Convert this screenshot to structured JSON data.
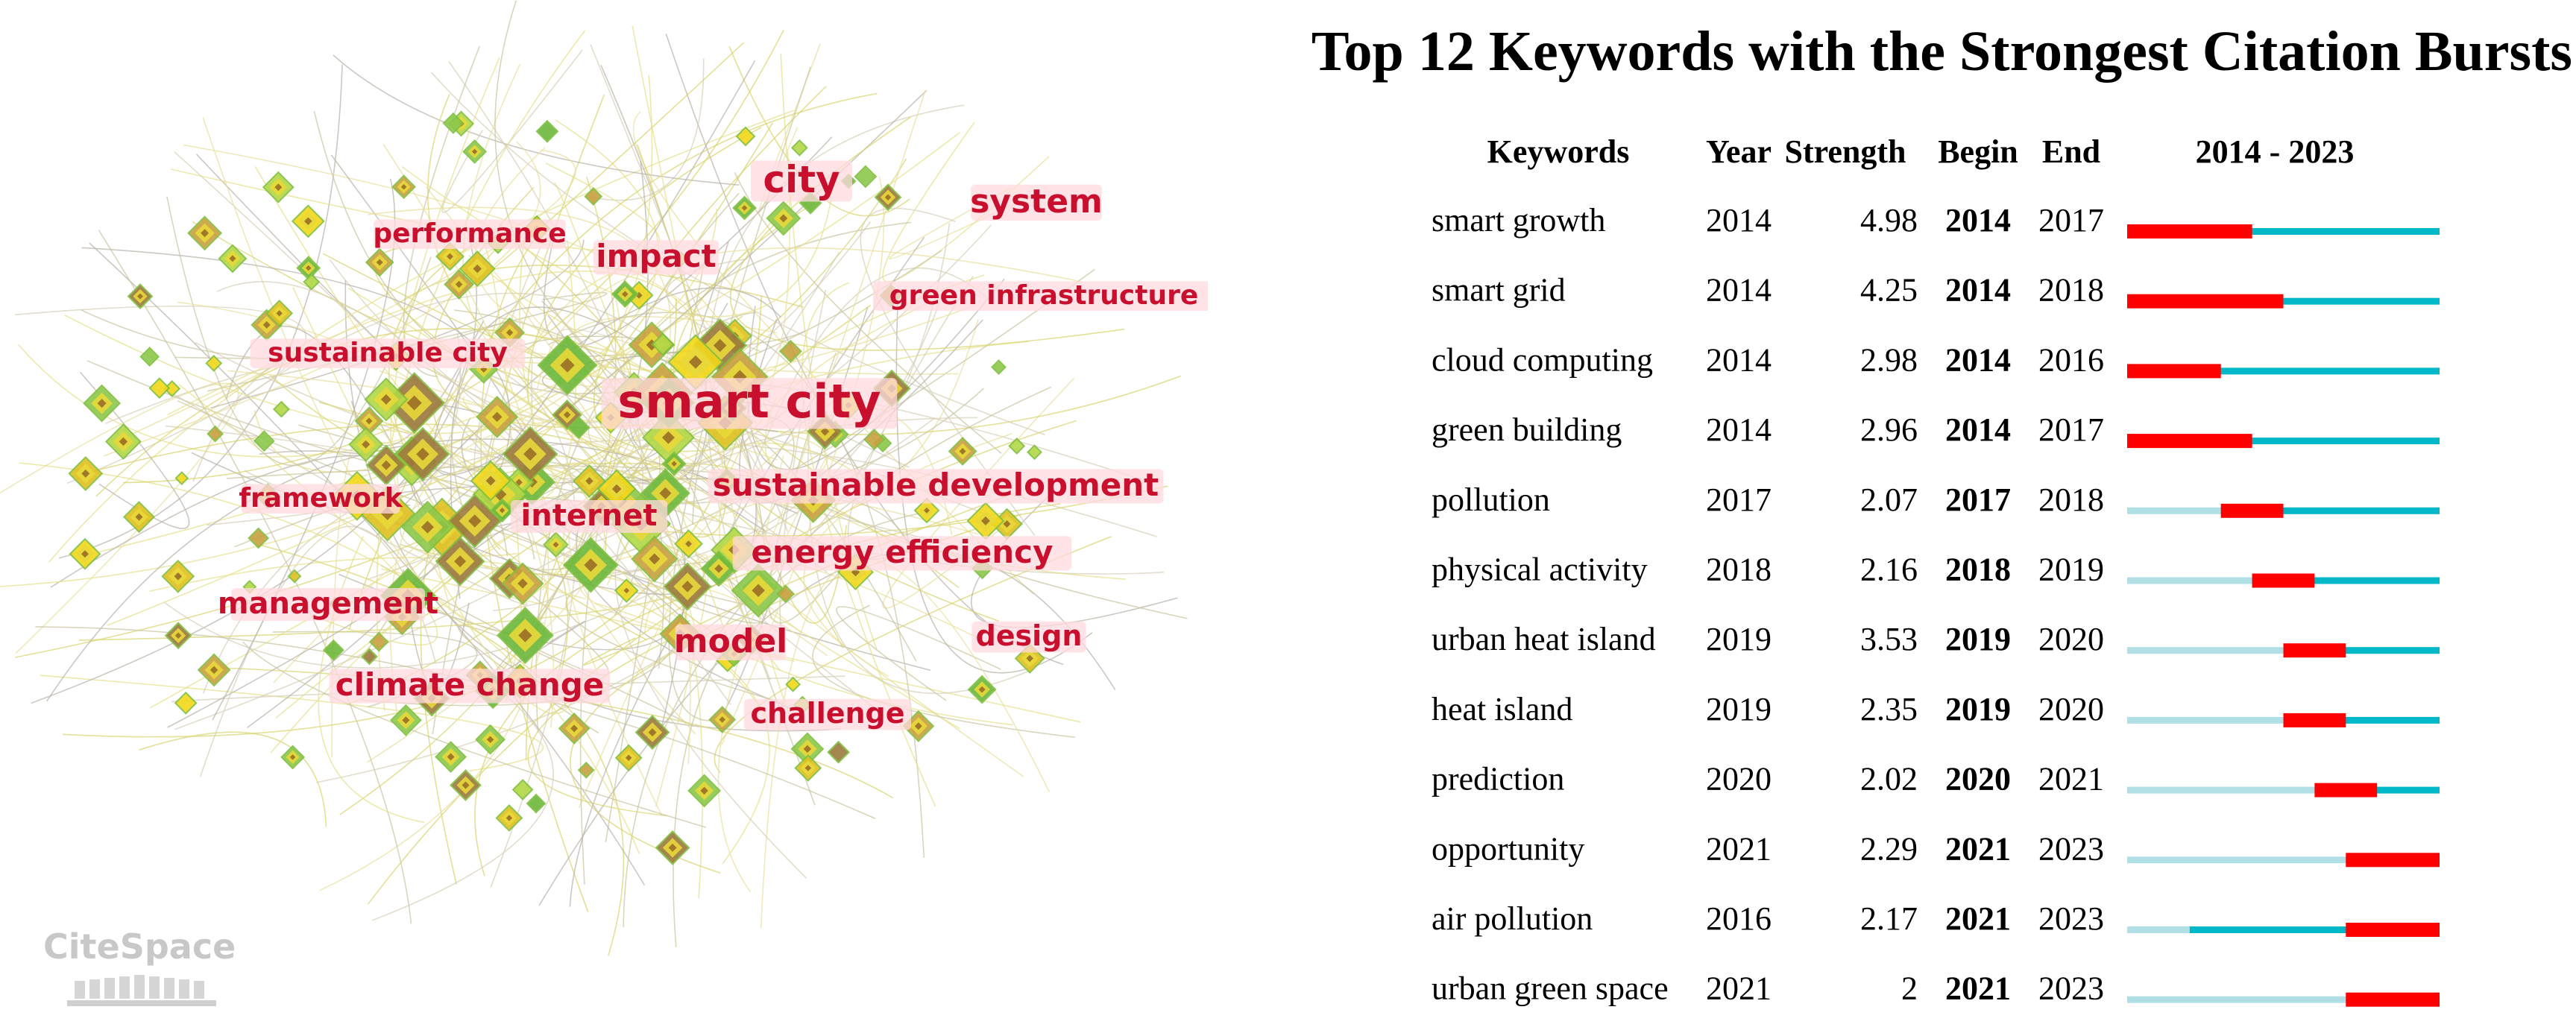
{
  "network": {
    "watermark": "CiteSpace",
    "keywords": [
      {
        "label": "city",
        "size": 50
      },
      {
        "label": "system",
        "size": 44
      },
      {
        "label": "performance",
        "size": 36
      },
      {
        "label": "impact",
        "size": 42
      },
      {
        "label": "green infrastructure",
        "size": 36
      },
      {
        "label": "sustainable city",
        "size": 36
      },
      {
        "label": "smart city",
        "size": 62
      },
      {
        "label": "sustainable development",
        "size": 42
      },
      {
        "label": "framework",
        "size": 36
      },
      {
        "label": "internet",
        "size": 40
      },
      {
        "label": "energy efficiency",
        "size": 42
      },
      {
        "label": "management",
        "size": 40
      },
      {
        "label": "design",
        "size": 38
      },
      {
        "label": "model",
        "size": 44
      },
      {
        "label": "climate change",
        "size": 42
      },
      {
        "label": "challenge",
        "size": 38
      }
    ]
  },
  "chart_data": {
    "type": "table",
    "title": "Top 12 Keywords with the Strongest Citation Bursts",
    "columns": [
      "Keywords",
      "Year",
      "Strength",
      "Begin",
      "End",
      "2014 - 2023"
    ],
    "range": [
      2014,
      2023
    ],
    "colors": {
      "burst": "#ff0000",
      "active": "#00b8c8",
      "inactive": "#b0e0e6"
    },
    "rows": [
      {
        "keyword": "smart growth",
        "year": "2014",
        "strength": "4.98",
        "begin": "2014",
        "end": "2017"
      },
      {
        "keyword": "smart grid",
        "year": "2014",
        "strength": "4.25",
        "begin": "2014",
        "end": "2018"
      },
      {
        "keyword": "cloud computing",
        "year": "2014",
        "strength": "2.98",
        "begin": "2014",
        "end": "2016"
      },
      {
        "keyword": "green building",
        "year": "2014",
        "strength": "2.96",
        "begin": "2014",
        "end": "2017"
      },
      {
        "keyword": "pollution",
        "year": "2017",
        "strength": "2.07",
        "begin": "2017",
        "end": "2018"
      },
      {
        "keyword": "physical activity",
        "year": "2018",
        "strength": "2.16",
        "begin": "2018",
        "end": "2019"
      },
      {
        "keyword": "urban heat island",
        "year": "2019",
        "strength": "3.53",
        "begin": "2019",
        "end": "2020"
      },
      {
        "keyword": "heat island",
        "year": "2019",
        "strength": "2.35",
        "begin": "2019",
        "end": "2020"
      },
      {
        "keyword": "prediction",
        "year": "2020",
        "strength": "2.02",
        "begin": "2020",
        "end": "2021"
      },
      {
        "keyword": "opportunity",
        "year": "2021",
        "strength": "2.29",
        "begin": "2021",
        "end": "2023"
      },
      {
        "keyword": "air pollution",
        "year": "2016",
        "strength": "2.17",
        "begin": "2021",
        "end": "2023"
      },
      {
        "keyword": "urban green space",
        "year": "2021",
        "strength": "2",
        "begin": "2021",
        "end": "2023"
      }
    ]
  }
}
